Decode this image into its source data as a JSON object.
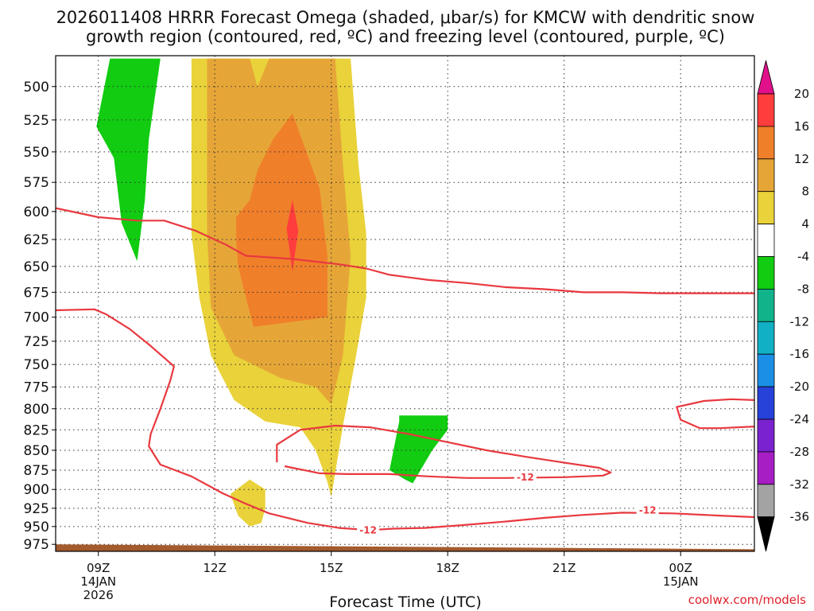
{
  "chart_data": {
    "type": "heatmap",
    "title_line1": "2026011408 HRRR Forecast Omega (shaded, μbar/s) for KMCW with dendritic snow",
    "title_line2": "growth region (contoured, red, ºC) and freezing level (contoured, purple, ºC)",
    "xlabel": "Forecast Time (UTC)",
    "credit": "coolwx.com/models",
    "x_range_hours": [
      7.9,
      25.9
    ],
    "y_range_mb": [
      478,
      985
    ],
    "x_ticks": [
      {
        "hour": 9,
        "label": "09Z",
        "date1": "14JAN",
        "date2": "2026"
      },
      {
        "hour": 12,
        "label": "12Z",
        "date1": "",
        "date2": ""
      },
      {
        "hour": 15,
        "label": "15Z",
        "date1": "",
        "date2": ""
      },
      {
        "hour": 18,
        "label": "18Z",
        "date1": "",
        "date2": ""
      },
      {
        "hour": 21,
        "label": "21Z",
        "date1": "",
        "date2": ""
      },
      {
        "hour": 24,
        "label": "00Z",
        "date1": "15JAN",
        "date2": ""
      }
    ],
    "y_ticks": [
      "500",
      "525",
      "550",
      "575",
      "600",
      "625",
      "650",
      "675",
      "700",
      "725",
      "750",
      "775",
      "800",
      "825",
      "850",
      "875",
      "900",
      "925",
      "950",
      "975"
    ],
    "colorbar": {
      "labels": [
        "20",
        "16",
        "12",
        "8",
        "4",
        "-4",
        "-8",
        "-12",
        "-16",
        "-20",
        "-24",
        "-28",
        "-32",
        "-36"
      ],
      "colors": [
        "#ff3d3d",
        "#f07f2a",
        "#e6a637",
        "#e9d23a",
        "#ffffff",
        "#11cc11",
        "#11b38a",
        "#12b0c4",
        "#1b8fe6",
        "#2742d9",
        "#7a22cf",
        "#a61ec4",
        "#a3a3a3"
      ],
      "top_arrow_color": "#e0108a",
      "bottom_arrow_color": "#000000"
    },
    "shaded_regions": [
      {
        "name": "omega-green-upper",
        "color": "#11cc11",
        "points": [
          [
            8.95,
            530
          ],
          [
            9.3,
            480
          ],
          [
            10.6,
            480
          ],
          [
            10.3,
            540
          ],
          [
            10.2,
            590
          ],
          [
            10.0,
            645
          ],
          [
            9.6,
            610
          ],
          [
            9.4,
            555
          ]
        ]
      },
      {
        "name": "omega-yellow",
        "color": "#e9d23a",
        "points": [
          [
            11.4,
            570
          ],
          [
            11.4,
            480
          ],
          [
            15.5,
            480
          ],
          [
            15.7,
            560
          ],
          [
            15.9,
            620
          ],
          [
            15.9,
            680
          ],
          [
            15.6,
            750
          ],
          [
            15.3,
            820
          ],
          [
            15.0,
            910
          ],
          [
            14.9,
            890
          ],
          [
            14.6,
            850
          ],
          [
            14.2,
            822
          ],
          [
            13.3,
            815
          ],
          [
            12.5,
            790
          ],
          [
            11.9,
            740
          ],
          [
            11.6,
            680
          ],
          [
            11.4,
            620
          ]
        ]
      },
      {
        "name": "omega-yellow-small",
        "color": "#e9d23a",
        "points": [
          [
            12.4,
            906
          ],
          [
            12.9,
            887
          ],
          [
            13.3,
            900
          ],
          [
            13.3,
            925
          ],
          [
            13.2,
            945
          ],
          [
            12.9,
            950
          ],
          [
            12.6,
            935
          ]
        ]
      },
      {
        "name": "omega-light-orange",
        "color": "#e6a637",
        "points": [
          [
            11.8,
            560
          ],
          [
            11.8,
            480
          ],
          [
            12.9,
            480
          ],
          [
            13.1,
            500
          ],
          [
            13.4,
            480
          ],
          [
            15.1,
            480
          ],
          [
            15.3,
            560
          ],
          [
            15.5,
            640
          ],
          [
            15.3,
            740
          ],
          [
            15.0,
            795
          ],
          [
            14.6,
            775
          ],
          [
            13.7,
            765
          ],
          [
            12.5,
            740
          ],
          [
            11.9,
            690
          ],
          [
            11.8,
            620
          ]
        ]
      },
      {
        "name": "omega-orange",
        "color": "#f07f2a",
        "points": [
          [
            12.55,
            625
          ],
          [
            12.55,
            605
          ],
          [
            12.9,
            590
          ],
          [
            13.1,
            565
          ],
          [
            13.5,
            540
          ],
          [
            14.0,
            520
          ],
          [
            14.7,
            580
          ],
          [
            14.9,
            640
          ],
          [
            14.9,
            700
          ],
          [
            13.0,
            710
          ],
          [
            12.8,
            680
          ],
          [
            12.6,
            650
          ]
        ]
      },
      {
        "name": "omega-red",
        "color": "#ff3d3d",
        "points": [
          [
            13.85,
            615
          ],
          [
            14.0,
            590
          ],
          [
            14.15,
            617
          ],
          [
            14.0,
            655
          ]
        ]
      },
      {
        "name": "omega-green-lower",
        "color": "#11cc11",
        "points": [
          [
            16.5,
            875
          ],
          [
            16.75,
            815
          ],
          [
            16.75,
            808
          ],
          [
            18.0,
            808
          ],
          [
            18.0,
            825
          ],
          [
            17.6,
            850
          ],
          [
            17.3,
            875
          ],
          [
            17.1,
            892
          ],
          [
            16.9,
            887
          ]
        ]
      }
    ],
    "contours": [
      {
        "name": "dgz-upper",
        "color": "#e8393f",
        "points": [
          [
            7.9,
            597
          ],
          [
            9.0,
            605
          ],
          [
            10.0,
            608
          ],
          [
            10.7,
            608
          ],
          [
            11.5,
            617
          ],
          [
            12.3,
            630
          ],
          [
            12.8,
            640
          ],
          [
            14.0,
            643
          ],
          [
            15.2,
            648
          ],
          [
            15.9,
            652
          ],
          [
            16.5,
            658
          ],
          [
            17.5,
            663
          ],
          [
            18.5,
            666
          ],
          [
            19.5,
            670
          ],
          [
            20.5,
            672
          ],
          [
            21.5,
            675
          ],
          [
            22.5,
            675
          ],
          [
            23.5,
            676
          ],
          [
            24.5,
            676
          ],
          [
            25.9,
            676
          ]
        ]
      },
      {
        "name": "dgz-lower",
        "color": "#e8393f",
        "points": [
          [
            7.9,
            693
          ],
          [
            8.9,
            692
          ],
          [
            9.2,
            697
          ],
          [
            9.8,
            712
          ],
          [
            10.35,
            730
          ],
          [
            10.95,
            752
          ],
          [
            10.85,
            768
          ],
          [
            10.6,
            800
          ],
          [
            10.35,
            830
          ],
          [
            10.3,
            845
          ],
          [
            10.6,
            868
          ],
          [
            11.4,
            883
          ],
          [
            12.2,
            905
          ],
          [
            12.8,
            919
          ],
          [
            13.4,
            932
          ],
          [
            14.4,
            945
          ],
          [
            15.2,
            952
          ],
          [
            16.0,
            955
          ],
          [
            16.6,
            953
          ],
          [
            17.4,
            952
          ],
          [
            18.4,
            948
          ],
          [
            19.5,
            943
          ],
          [
            20.5,
            938
          ],
          [
            21.5,
            934
          ],
          [
            22.5,
            931
          ],
          [
            23.8,
            932
          ],
          [
            25.0,
            935
          ],
          [
            25.9,
            937
          ]
        ]
      },
      {
        "name": "dgz-closed",
        "color": "#e8393f",
        "points": [
          [
            13.6,
            865
          ],
          [
            13.6,
            843
          ],
          [
            14.2,
            825
          ],
          [
            15.1,
            820
          ],
          [
            16.0,
            822
          ],
          [
            17.0,
            830
          ],
          [
            18.0,
            840
          ],
          [
            19.0,
            850
          ],
          [
            20.0,
            858
          ],
          [
            20.8,
            864
          ],
          [
            21.9,
            872
          ],
          [
            22.2,
            878
          ],
          [
            22.0,
            882
          ],
          [
            21.0,
            884
          ],
          [
            19.5,
            885
          ],
          [
            18.5,
            885
          ],
          [
            17.5,
            883
          ],
          [
            16.5,
            880
          ],
          [
            15.4,
            880
          ],
          [
            14.7,
            879
          ],
          [
            14.2,
            874
          ],
          [
            13.8,
            870
          ]
        ]
      },
      {
        "name": "dgz-right",
        "color": "#e8393f",
        "points": [
          [
            25.9,
            790
          ],
          [
            25.3,
            789
          ],
          [
            24.6,
            791
          ],
          [
            23.9,
            798
          ],
          [
            24.0,
            813
          ],
          [
            24.5,
            823
          ],
          [
            25.0,
            823
          ],
          [
            25.9,
            821
          ]
        ]
      }
    ],
    "contour_labels": [
      {
        "text": "-12",
        "hour": 20.0,
        "mb": 884
      },
      {
        "text": "-12",
        "hour": 23.15,
        "mb": 928
      },
      {
        "text": "-12",
        "hour": 15.95,
        "mb": 955
      }
    ],
    "terrain": {
      "color": "#a35a2d",
      "mb_left": 975,
      "mb_right": 982
    }
  }
}
